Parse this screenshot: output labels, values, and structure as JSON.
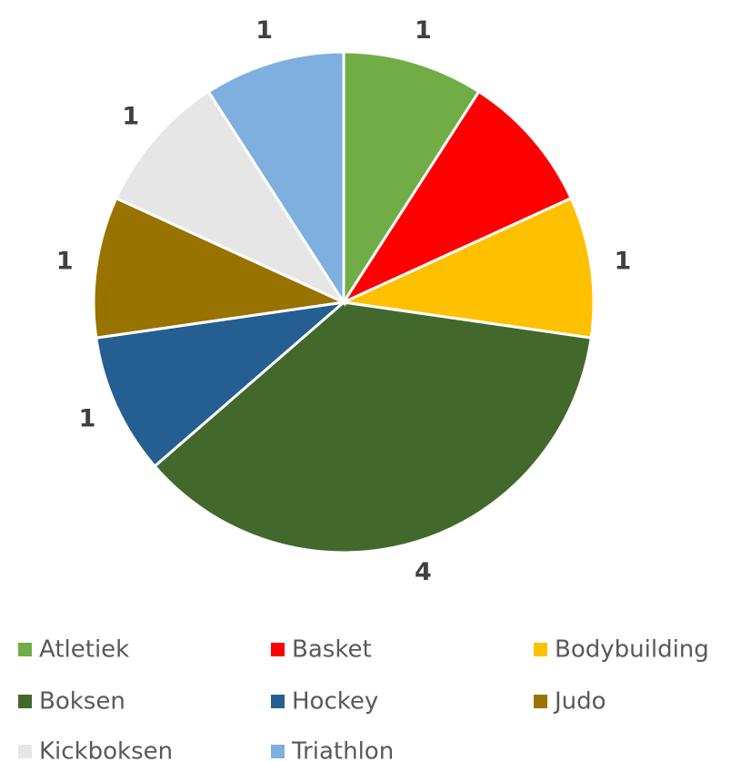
{
  "chart_data": {
    "type": "pie",
    "categories": [
      "Atletiek",
      "Basket",
      "Bodybuilding",
      "Boksen",
      "Hockey",
      "Judo",
      "Kickboksen",
      "Triathlon"
    ],
    "values": [
      1,
      1,
      1,
      4,
      1,
      1,
      1,
      1
    ],
    "value_labels": [
      "1",
      null,
      "1",
      "4",
      "1",
      "1",
      "1",
      "1"
    ],
    "colors": [
      "#70ad47",
      "#ff0000",
      "#ffc000",
      "#43682b",
      "#255e91",
      "#997300",
      "#e7e6e6",
      "#7eafdf"
    ],
    "legend": "bottom"
  }
}
